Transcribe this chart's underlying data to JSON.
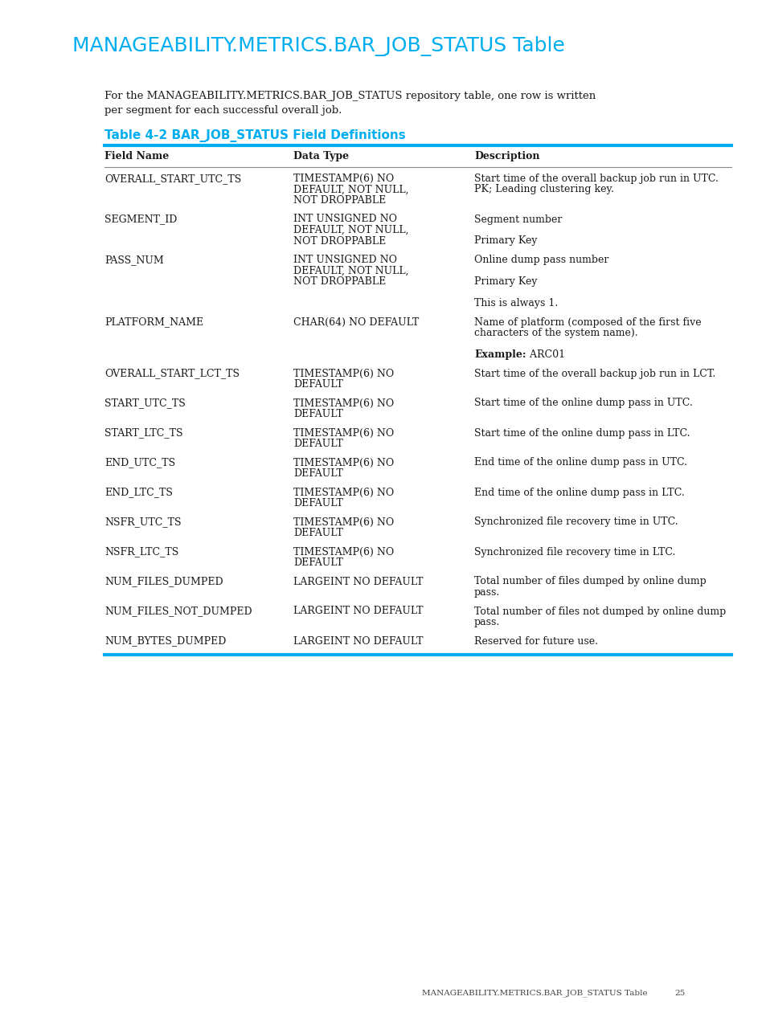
{
  "title": "MANAGEABILITY.METRICS.BAR_JOB_STATUS Table",
  "title_color": "#00AEEF",
  "intro_line1": "For the MANAGEABILITY.METRICS.BAR_JOB_STATUS repository table, one row is written",
  "intro_line2": "per segment for each successful overall job.",
  "table_title": "Table 4-2 BAR_JOB_STATUS Field Definitions",
  "table_title_color": "#00AEEF",
  "line_color": "#00AEEF",
  "col_headers": [
    "Field Name",
    "Data Type",
    "Description"
  ],
  "rows": [
    {
      "field": "OVERALL_START_UTC_TS",
      "dtype": [
        "TIMESTAMP(6) NO",
        "DEFAULT, NOT NULL,",
        "NOT DROPPABLE"
      ],
      "desc": [
        [
          "Start time of the overall backup job run in UTC."
        ],
        [
          "PK; Leading clustering key."
        ]
      ]
    },
    {
      "field": "SEGMENT_ID",
      "dtype": [
        "INT UNSIGNED NO",
        "DEFAULT, NOT NULL,",
        "NOT DROPPABLE"
      ],
      "desc": [
        [
          "Segment number"
        ],
        [
          ""
        ],
        [
          "Primary Key"
        ]
      ]
    },
    {
      "field": "PASS_NUM",
      "dtype": [
        "INT UNSIGNED NO",
        "DEFAULT, NOT NULL,",
        "NOT DROPPABLE"
      ],
      "desc": [
        [
          "Online dump pass number"
        ],
        [
          ""
        ],
        [
          "Primary Key"
        ],
        [
          ""
        ],
        [
          "This is always 1."
        ]
      ]
    },
    {
      "field": "PLATFORM_NAME",
      "dtype": [
        "CHAR(64) NO DEFAULT"
      ],
      "desc": [
        [
          "Name of platform (composed of the first five"
        ],
        [
          "characters of the system name)."
        ],
        [
          ""
        ],
        [
          {
            "bold": "Example:"
          },
          " ARC01"
        ]
      ]
    },
    {
      "field": "OVERALL_START_LCT_TS",
      "dtype": [
        "TIMESTAMP(6) NO",
        "DEFAULT"
      ],
      "desc": [
        [
          "Start time of the overall backup job run in LCT."
        ]
      ]
    },
    {
      "field": "START_UTC_TS",
      "dtype": [
        "TIMESTAMP(6) NO",
        "DEFAULT"
      ],
      "desc": [
        [
          "Start time of the online dump pass in UTC."
        ]
      ]
    },
    {
      "field": "START_LTC_TS",
      "dtype": [
        "TIMESTAMP(6) NO",
        "DEFAULT"
      ],
      "desc": [
        [
          "Start time of the online dump pass in LTC."
        ]
      ]
    },
    {
      "field": "END_UTC_TS",
      "dtype": [
        "TIMESTAMP(6) NO",
        "DEFAULT"
      ],
      "desc": [
        [
          "End time of the online dump pass in UTC."
        ]
      ]
    },
    {
      "field": "END_LTC_TS",
      "dtype": [
        "TIMESTAMP(6) NO",
        "DEFAULT"
      ],
      "desc": [
        [
          "End time of the online dump pass in LTC."
        ]
      ]
    },
    {
      "field": "NSFR_UTC_TS",
      "dtype": [
        "TIMESTAMP(6) NO",
        "DEFAULT"
      ],
      "desc": [
        [
          "Synchronized file recovery time in UTC."
        ]
      ]
    },
    {
      "field": "NSFR_LTC_TS",
      "dtype": [
        "TIMESTAMP(6) NO",
        "DEFAULT"
      ],
      "desc": [
        [
          "Synchronized file recovery time in LTC."
        ]
      ]
    },
    {
      "field": "NUM_FILES_DUMPED",
      "dtype": [
        "LARGEINT NO DEFAULT"
      ],
      "desc": [
        [
          "Total number of files dumped by online dump"
        ],
        [
          "pass."
        ]
      ]
    },
    {
      "field": "NUM_FILES_NOT_DUMPED",
      "dtype": [
        "LARGEINT NO DEFAULT"
      ],
      "desc": [
        [
          "Total number of files not dumped by online dump"
        ],
        [
          "pass."
        ]
      ]
    },
    {
      "field": "NUM_BYTES_DUMPED",
      "dtype": [
        "LARGEINT NO DEFAULT"
      ],
      "desc": [
        [
          "Reserved for future use."
        ]
      ]
    }
  ],
  "footer_text": "MANAGEABILITY.METRICS.BAR_JOB_STATUS Table",
  "footer_page": "25",
  "bg_color": "#ffffff",
  "text_color": "#1a1a1a"
}
